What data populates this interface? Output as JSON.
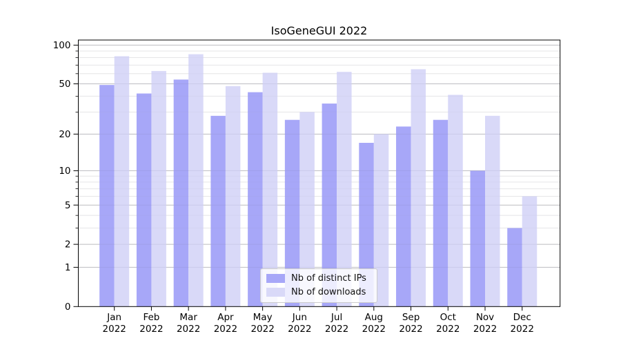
{
  "title": "IsoGeneGUI 2022",
  "chart_data": {
    "type": "bar",
    "title": "IsoGeneGUI 2022",
    "xlabel": "",
    "ylabel": "",
    "y_scale": "log1p-symlog",
    "ylim": [
      0,
      110
    ],
    "yticks": [
      0,
      1,
      2,
      5,
      10,
      20,
      50,
      100
    ],
    "yticks_minor": [
      3,
      4,
      6,
      7,
      8,
      9,
      30,
      40,
      60,
      70,
      80,
      90
    ],
    "grid": "horizontal major+minor",
    "legend_position": "lower center",
    "categories": [
      "Jan 2022",
      "Feb 2022",
      "Mar 2022",
      "Apr 2022",
      "May 2022",
      "Jun 2022",
      "Jul 2022",
      "Aug 2022",
      "Sep 2022",
      "Oct 2022",
      "Nov 2022",
      "Dec 2022"
    ],
    "series": [
      {
        "name": "Nb of distinct IPs",
        "color": "#a7a7f8",
        "values": [
          49,
          42,
          54,
          28,
          43,
          26,
          35,
          17,
          23,
          26,
          10,
          3
        ]
      },
      {
        "name": "Nb of downloads",
        "color": "#d9d9f8",
        "values": [
          82,
          63,
          85,
          48,
          61,
          30,
          62,
          20,
          65,
          41,
          28,
          6
        ]
      }
    ],
    "colors": {
      "grid_major": "#c9c9c9",
      "grid_minor": "#ececec",
      "axis": "#000000",
      "legend_border": "#cbcbcb"
    }
  }
}
